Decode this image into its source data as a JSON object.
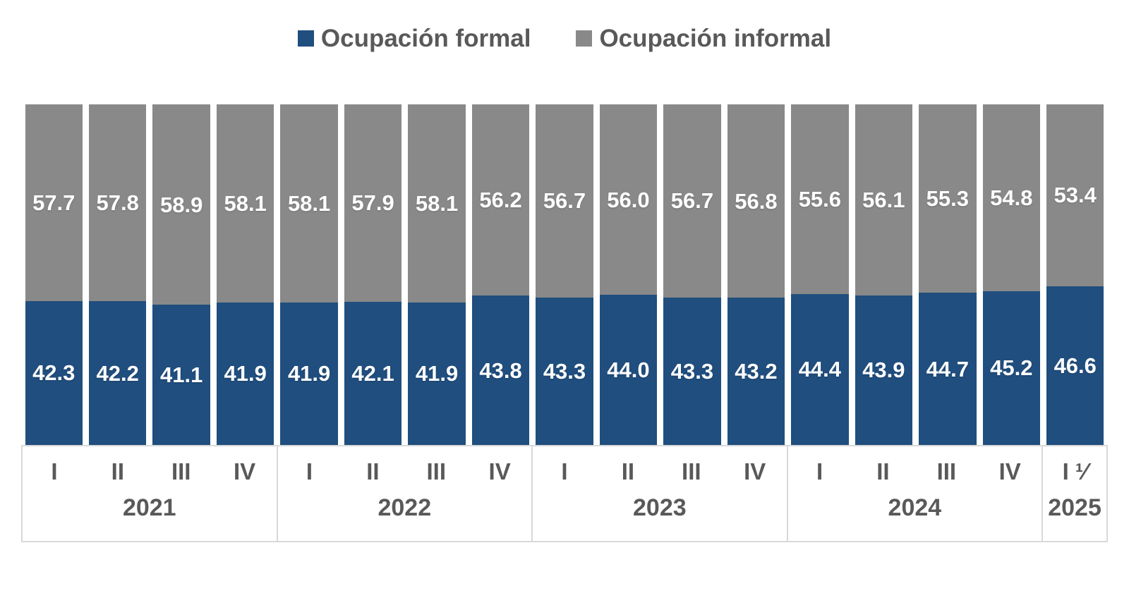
{
  "legend": {
    "items": [
      {
        "label": "Ocupación formal",
        "color": "#204E7E"
      },
      {
        "label": "Ocupación informal",
        "color": "#898989"
      }
    ]
  },
  "colors": {
    "formal": "#204E7E",
    "informal": "#898989",
    "axis_text": "#595959",
    "border": "#d9d9d9",
    "value_label": "#ffffff"
  },
  "chart_data": {
    "type": "bar",
    "stacked": true,
    "unit": "percent",
    "ylim": [
      0,
      100
    ],
    "grid": false,
    "legend_position": "top",
    "categories": [
      "2021-I",
      "2021-II",
      "2021-III",
      "2021-IV",
      "2022-I",
      "2022-II",
      "2022-III",
      "2022-IV",
      "2023-I",
      "2023-II",
      "2023-III",
      "2023-IV",
      "2024-I",
      "2024-II",
      "2024-III",
      "2024-IV",
      "2025-I"
    ],
    "series": [
      {
        "name": "Ocupación formal",
        "color": "#204E7E",
        "values": [
          42.3,
          42.2,
          41.1,
          41.9,
          41.9,
          42.1,
          41.9,
          43.8,
          43.3,
          44.0,
          43.3,
          43.2,
          44.4,
          43.9,
          44.7,
          45.2,
          46.6
        ]
      },
      {
        "name": "Ocupación informal",
        "color": "#898989",
        "values": [
          57.7,
          57.8,
          58.9,
          58.1,
          58.1,
          57.9,
          58.1,
          56.2,
          56.7,
          56.0,
          56.7,
          56.8,
          55.6,
          56.1,
          55.3,
          54.8,
          53.4
        ]
      }
    ],
    "year_groups": [
      {
        "year": "2021",
        "quarters": [
          "I",
          "II",
          "III",
          "IV"
        ]
      },
      {
        "year": "2022",
        "quarters": [
          "I",
          "II",
          "III",
          "IV"
        ]
      },
      {
        "year": "2023",
        "quarters": [
          "I",
          "II",
          "III",
          "IV"
        ]
      },
      {
        "year": "2024",
        "quarters": [
          "I",
          "II",
          "III",
          "IV"
        ]
      },
      {
        "year": "2025",
        "quarters": [
          "I ¹⁄"
        ]
      }
    ]
  }
}
